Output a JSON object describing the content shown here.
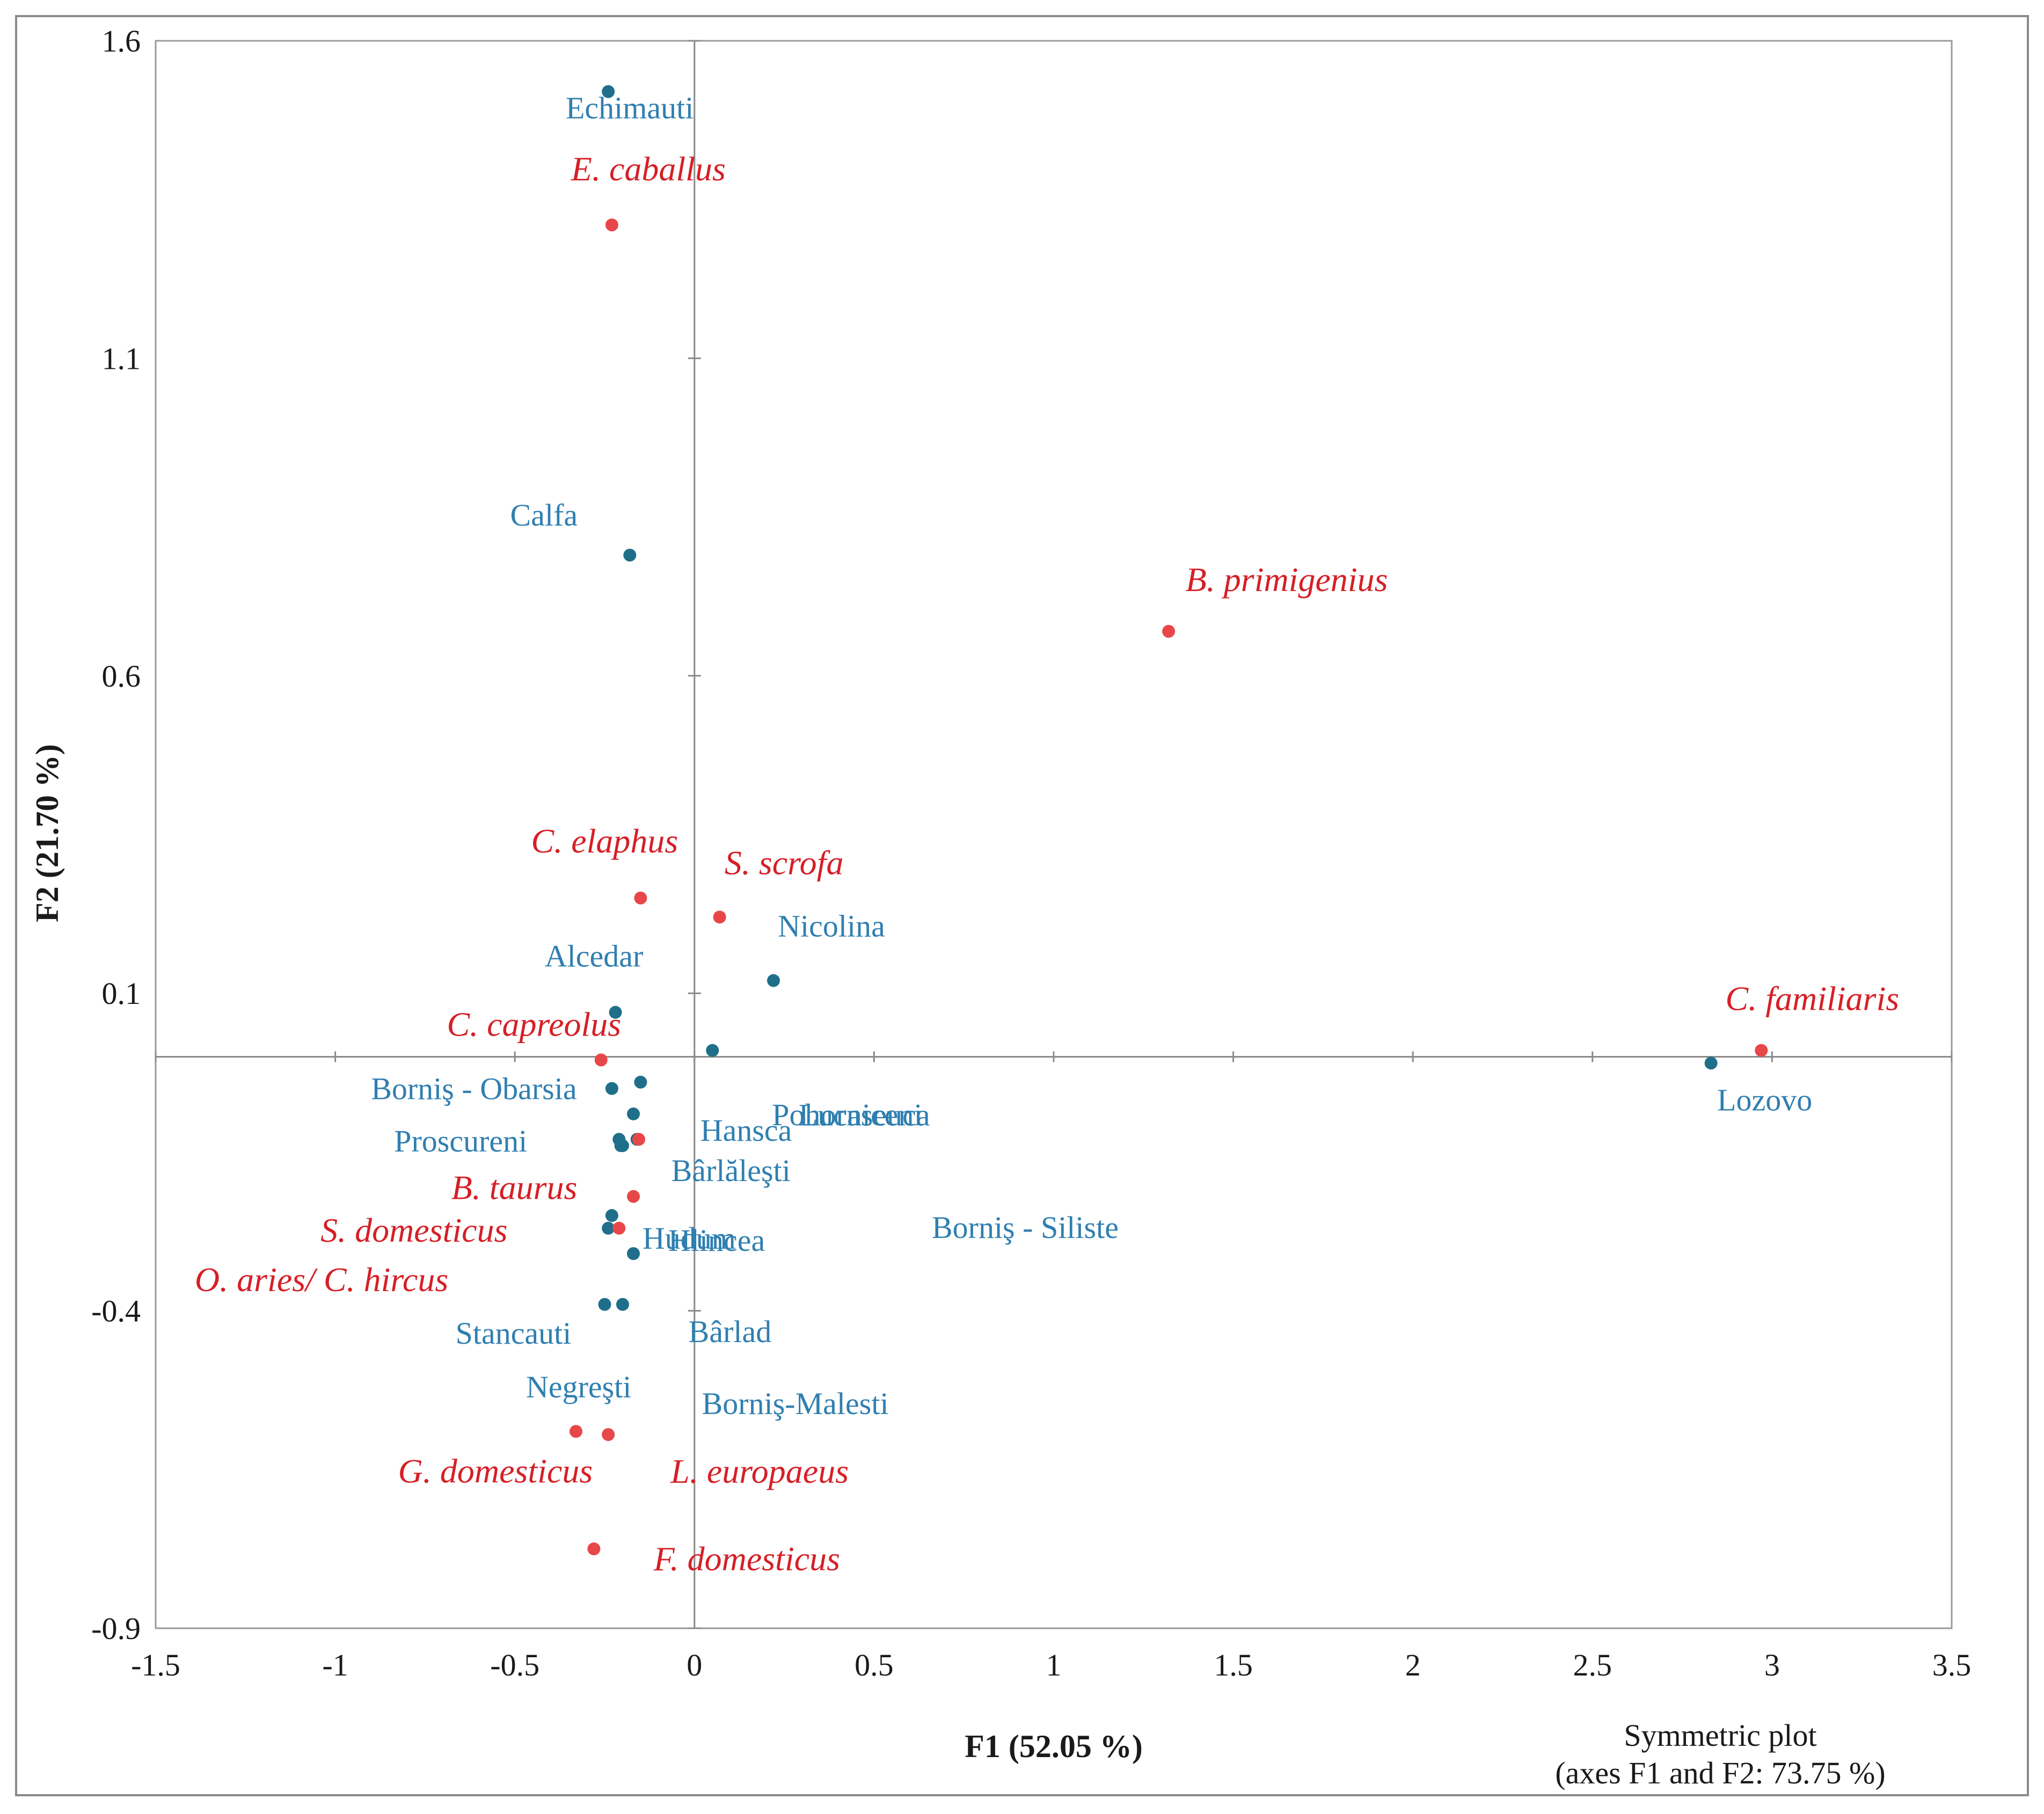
{
  "chart_data": {
    "type": "scatter",
    "title": "",
    "xlabel": "F1 (52.05 %)",
    "ylabel": "F2 (21.70 %)",
    "xlim": [
      -1.5,
      3.5
    ],
    "ylim": [
      -0.9,
      1.6
    ],
    "xticks": [
      "-1.5",
      "-1",
      "-0.5",
      "0",
      "0.5",
      "1",
      "1.5",
      "2",
      "2.5",
      "3",
      "3.5"
    ],
    "yticks": [
      "1.6",
      "1.1",
      "0.6",
      "0.1",
      "-0.4",
      "-0.9"
    ],
    "annotation": [
      "Symmetric plot",
      "(axes F1 and F2: 73.75 %)"
    ],
    "colors": {
      "sites": "#1f6f8b",
      "species": "#e8474a",
      "site_text": "#2f7fb0",
      "species_text": "#d61f26"
    },
    "series": [
      {
        "name": "Sites",
        "points": [
          {
            "label": "Echimauti",
            "x": -0.24,
            "y": 1.52
          },
          {
            "label": "Calfa",
            "x": -0.18,
            "y": 0.79
          },
          {
            "label": "Alcedar",
            "x": -0.22,
            "y": 0.07
          },
          {
            "label": "Nicolina",
            "x": 0.22,
            "y": 0.12
          },
          {
            "label": "Lucaseuca",
            "x": 0.05,
            "y": 0.01
          },
          {
            "label": "Pohorniceni",
            "x": -0.15,
            "y": -0.04
          },
          {
            "label": "Borniş - Obarsia",
            "x": -0.23,
            "y": -0.05
          },
          {
            "label": "Hansca",
            "x": -0.17,
            "y": -0.09
          },
          {
            "label": "Proscureni",
            "x": -0.21,
            "y": -0.13
          },
          {
            "label": "Bârlăleşti",
            "x": -0.16,
            "y": -0.13
          },
          {
            "label": "Borniş - Siliste",
            "x": -0.2,
            "y": -0.14
          },
          {
            "label": "Hudum",
            "x": -0.23,
            "y": -0.25
          },
          {
            "label": "Negreşti",
            "x": -0.24,
            "y": -0.27
          },
          {
            "label": "Hlincea",
            "x": -0.17,
            "y": -0.31
          },
          {
            "label": "Stancauti",
            "x": -0.25,
            "y": -0.39
          },
          {
            "label": "Bârlad",
            "x": -0.2,
            "y": -0.39
          },
          {
            "label": "Borniş-Malesti",
            "x": -0.205,
            "y": -0.14
          },
          {
            "label": "Lozovo",
            "x": 2.83,
            "y": -0.01
          }
        ]
      },
      {
        "name": "Species",
        "points": [
          {
            "label": "E. caballus",
            "x": -0.23,
            "y": 1.31
          },
          {
            "label": "B. primigenius",
            "x": 1.32,
            "y": 0.67
          },
          {
            "label": "C. elaphus",
            "x": -0.15,
            "y": 0.25
          },
          {
            "label": "S. scrofa",
            "x": 0.07,
            "y": 0.22
          },
          {
            "label": "C. capreolus",
            "x": -0.26,
            "y": -0.005
          },
          {
            "label": "C. familiaris",
            "x": 2.97,
            "y": 0.01
          },
          {
            "label": "B. taurus",
            "x": -0.17,
            "y": -0.22
          },
          {
            "label": "S. domesticus",
            "x": -0.21,
            "y": -0.27
          },
          {
            "label": "O. aries/ C. hircus",
            "x": -0.155,
            "y": -0.13
          },
          {
            "label": "G. domesticus",
            "x": -0.33,
            "y": -0.59
          },
          {
            "label": "L. europaeus",
            "x": -0.24,
            "y": -0.595
          },
          {
            "label": "F. domesticus",
            "x": -0.28,
            "y": -0.775
          }
        ]
      }
    ]
  }
}
